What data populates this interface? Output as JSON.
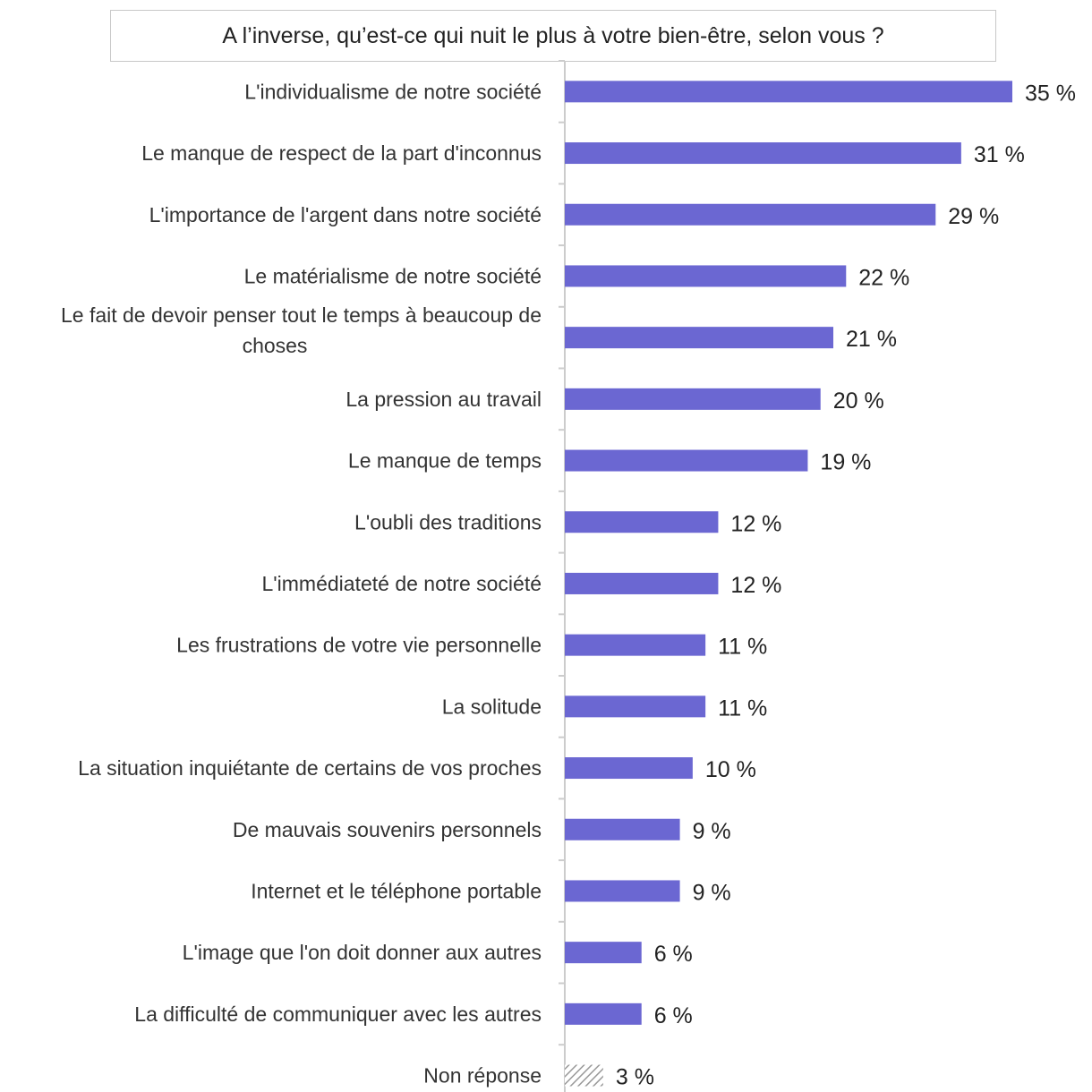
{
  "chart_data": {
    "type": "bar",
    "orientation": "horizontal",
    "title": "A l’inverse, qu’est-ce qui nuit le plus à votre bien-être, selon vous ?",
    "categories": [
      "L'individualisme de notre société",
      "Le manque de respect de la part d'inconnus",
      "L'importance de l'argent dans notre société",
      "Le matérialisme de notre société",
      "Le fait de devoir penser tout le temps à beaucoup de choses",
      "La pression au travail",
      "Le manque de temps",
      "L'oubli des traditions",
      "L'immédiateté de notre société",
      "Les frustrations de votre vie personnelle",
      "La solitude",
      "La situation inquiétante de certains de vos proches",
      "De mauvais souvenirs personnels",
      "Internet et le téléphone portable",
      "L'image que l'on doit donner aux autres",
      "La difficulté de communiquer avec les autres",
      "Non réponse"
    ],
    "category_lines": [
      [
        "L'individualisme de notre société"
      ],
      [
        "Le manque de respect de la part d'inconnus"
      ],
      [
        "L'importance de l'argent dans notre société"
      ],
      [
        "Le matérialisme de notre société"
      ],
      [
        "Le fait de devoir penser tout le temps à beaucoup de",
        "choses"
      ],
      [
        "La pression au travail"
      ],
      [
        "Le manque de temps"
      ],
      [
        "L'oubli des traditions"
      ],
      [
        "L'immédiateté de notre société"
      ],
      [
        "Les frustrations de votre vie personnelle"
      ],
      [
        "La solitude"
      ],
      [
        "La situation inquiétante de certains de vos proches"
      ],
      [
        "De mauvais souvenirs personnels"
      ],
      [
        "Internet et le téléphone portable"
      ],
      [
        "L'image que l'on doit donner aux autres"
      ],
      [
        "La difficulté de communiquer avec les autres"
      ],
      [
        "Non réponse"
      ]
    ],
    "values": [
      35,
      31,
      29,
      22,
      21,
      20,
      19,
      12,
      12,
      11,
      11,
      10,
      9,
      9,
      6,
      6,
      3
    ],
    "value_labels": [
      "35 %",
      "31 %",
      "29 %",
      "22 %",
      "21 %",
      "20 %",
      "19 %",
      "12 %",
      "12 %",
      "11 %",
      "11 %",
      "10 %",
      "9 %",
      "9 %",
      "6 %",
      "6 %",
      "3 %"
    ],
    "hatched": [
      false,
      false,
      false,
      false,
      false,
      false,
      false,
      false,
      false,
      false,
      false,
      false,
      false,
      false,
      false,
      false,
      true
    ],
    "xlim": [
      0,
      35
    ],
    "colors": {
      "bar": "#6b67d2",
      "hatch": "#999999",
      "axis": "#cccccc"
    }
  }
}
